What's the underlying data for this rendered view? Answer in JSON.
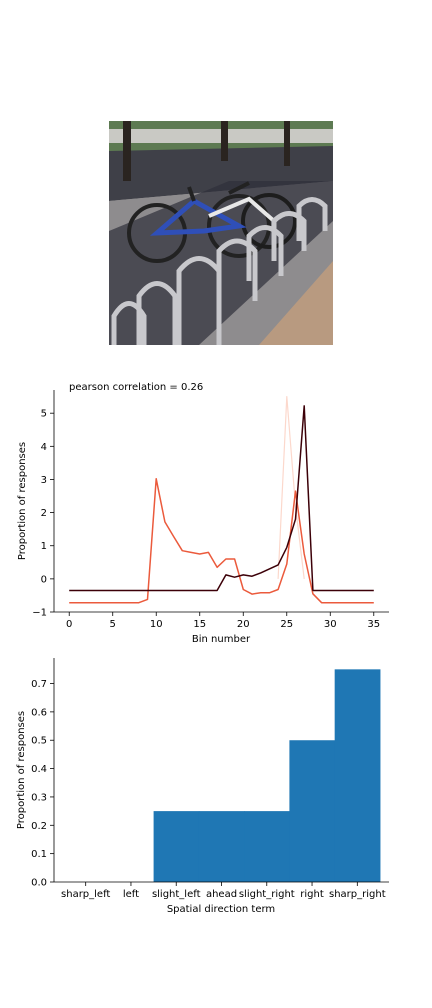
{
  "chart_data": [
    {
      "type": "line",
      "title": "pearson correlation = 0.26",
      "xlabel": "Bin number",
      "ylabel": "Proportion of responses",
      "xlim": [
        -1.75,
        36.75
      ],
      "ylim": [
        -1,
        5.7
      ],
      "xticks": [
        0,
        5,
        10,
        15,
        20,
        25,
        30,
        35
      ],
      "yticks": [
        -1,
        0,
        1,
        2,
        3,
        4,
        5
      ],
      "colors": {
        "series_a": "#eb5a3c",
        "series_b": "#3c0008",
        "faint": "#fcd8cc"
      },
      "series": [
        {
          "x": [
            0,
            1,
            2,
            3,
            4,
            5,
            6,
            7,
            8,
            9,
            10,
            11,
            12,
            13,
            14,
            15,
            16,
            17,
            18,
            19,
            20,
            21,
            22,
            23,
            24,
            25,
            26,
            27,
            28,
            29,
            30,
            31,
            32,
            33,
            34,
            35
          ],
          "values": [
            -0.72,
            -0.72,
            -0.72,
            -0.72,
            -0.72,
            -0.72,
            -0.72,
            -0.72,
            -0.72,
            -0.62,
            3.02,
            1.72,
            1.28,
            0.85,
            0.8,
            0.75,
            0.8,
            0.35,
            0.6,
            0.6,
            -0.32,
            -0.46,
            -0.42,
            -0.42,
            -0.32,
            0.45,
            2.65,
            0.75,
            -0.45,
            -0.72,
            -0.72,
            -0.72,
            -0.72,
            -0.72,
            -0.72,
            -0.72
          ]
        },
        {
          "x": [
            0,
            1,
            2,
            3,
            4,
            5,
            6,
            7,
            8,
            9,
            10,
            11,
            12,
            13,
            14,
            15,
            16,
            17,
            18,
            19,
            20,
            21,
            22,
            23,
            24,
            25,
            26,
            27,
            28,
            29,
            30,
            31,
            32,
            33,
            34,
            35
          ],
          "values": [
            -0.35,
            -0.35,
            -0.35,
            -0.35,
            -0.35,
            -0.35,
            -0.35,
            -0.35,
            -0.35,
            -0.35,
            -0.35,
            -0.35,
            -0.35,
            -0.35,
            -0.35,
            -0.35,
            -0.35,
            -0.35,
            0.12,
            0.05,
            0.12,
            0.08,
            0.18,
            0.3,
            0.42,
            0.95,
            1.8,
            5.22,
            -0.35,
            -0.35,
            -0.35,
            -0.35,
            -0.35,
            -0.35,
            -0.35,
            -0.35
          ]
        },
        {
          "x": [
            24,
            25,
            26,
            27
          ],
          "values": [
            0.0,
            5.5,
            2.2,
            0.0
          ]
        }
      ]
    },
    {
      "type": "bar",
      "xlabel": "Spatial direction term",
      "ylabel": "Proportion of responses",
      "categories": [
        "sharp_left",
        "left",
        "slight_left",
        "ahead",
        "slight_right",
        "right",
        "sharp_right"
      ],
      "values": [
        0,
        0,
        0.25,
        0.25,
        0.25,
        0.5,
        0.75
      ],
      "ylim": [
        0,
        0.79
      ],
      "yticks": [
        "0.0",
        "0.1",
        "0.2",
        "0.3",
        "0.4",
        "0.5",
        "0.6",
        "0.7"
      ],
      "color": "#1f77b4"
    }
  ]
}
